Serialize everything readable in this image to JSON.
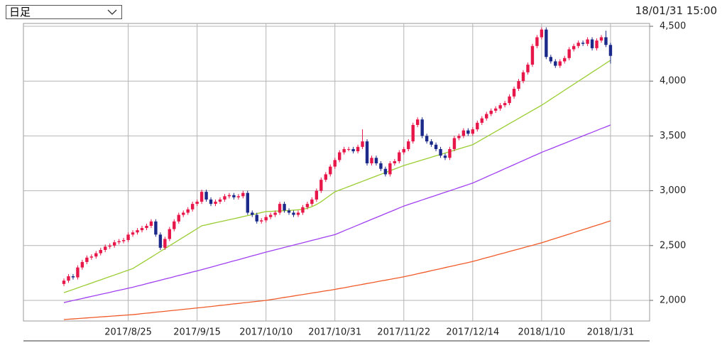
{
  "period_select": "日足",
  "timestamp": "18/01/31 15:00",
  "chart_data": {
    "type": "candlestick",
    "categories": [
      null,
      null,
      null,
      null,
      null,
      null,
      null,
      null,
      null,
      null,
      null,
      null,
      null,
      null,
      "2017/8/25",
      null,
      null,
      null,
      null,
      null,
      null,
      null,
      null,
      null,
      null,
      null,
      null,
      null,
      null,
      "2017/9/15",
      null,
      null,
      null,
      null,
      null,
      null,
      null,
      null,
      null,
      null,
      null,
      null,
      null,
      null,
      "2017/10/10",
      null,
      null,
      null,
      null,
      null,
      null,
      null,
      null,
      null,
      null,
      null,
      null,
      null,
      null,
      "2017/10/31",
      null,
      null,
      null,
      null,
      null,
      null,
      null,
      null,
      null,
      null,
      null,
      null,
      null,
      null,
      "2017/11/22",
      null,
      null,
      null,
      null,
      null,
      null,
      null,
      null,
      null,
      null,
      null,
      null,
      null,
      null,
      "2017/12/14",
      null,
      null,
      null,
      null,
      null,
      null,
      null,
      null,
      null,
      null,
      null,
      null,
      null,
      null,
      "2018/1/10",
      null,
      null,
      null,
      null,
      null,
      null,
      null,
      null,
      null,
      null,
      null,
      null,
      null,
      null,
      "2018/1/31"
    ],
    "open": [
      2150,
      2180,
      2220,
      2210,
      2300,
      2350,
      2390,
      2400,
      2430,
      2460,
      2490,
      2500,
      2530,
      2540,
      2550,
      2600,
      2620,
      2640,
      2660,
      2680,
      2720,
      2600,
      2480,
      2560,
      2650,
      2720,
      2780,
      2800,
      2830,
      2880,
      2900,
      2990,
      2920,
      2880,
      2900,
      2920,
      2950,
      2960,
      2940,
      2950,
      2980,
      2800,
      2780,
      2720,
      2730,
      2760,
      2780,
      2800,
      2880,
      2820,
      2800,
      2780,
      2800,
      2850,
      2880,
      2920,
      3000,
      3100,
      3150,
      3220,
      3280,
      3350,
      3380,
      3380,
      3360,
      3400,
      3450,
      3250,
      3300,
      3250,
      3200,
      3150,
      3250,
      3270,
      3350,
      3380,
      3450,
      3600,
      3650,
      3500,
      3450,
      3420,
      3380,
      3320,
      3300,
      3380,
      3480,
      3500,
      3550,
      3520,
      3560,
      3620,
      3660,
      3700,
      3730,
      3750,
      3780,
      3800,
      3860,
      3930,
      4000,
      4080,
      4150,
      4320,
      4400,
      4470,
      4220,
      4180,
      4140,
      4180,
      4210,
      4290,
      4320,
      4350,
      4340,
      4380,
      4300,
      4370,
      4400,
      4330
    ],
    "high": [
      2200,
      2240,
      2240,
      2320,
      2370,
      2410,
      2420,
      2450,
      2480,
      2510,
      2520,
      2550,
      2560,
      2570,
      2620,
      2640,
      2660,
      2680,
      2700,
      2740,
      2740,
      2620,
      2580,
      2670,
      2740,
      2800,
      2820,
      2850,
      2900,
      2920,
      3010,
      3010,
      2940,
      2920,
      2940,
      2970,
      2980,
      2980,
      2970,
      3000,
      3000,
      2820,
      2800,
      2750,
      2780,
      2800,
      2820,
      2900,
      2900,
      2840,
      2820,
      2820,
      2870,
      2900,
      2940,
      3020,
      3120,
      3170,
      3240,
      3300,
      3370,
      3400,
      3400,
      3400,
      3420,
      3560,
      3470,
      3320,
      3320,
      3270,
      3220,
      3270,
      3290,
      3370,
      3400,
      3470,
      3620,
      3670,
      3670,
      3520,
      3470,
      3440,
      3400,
      3340,
      3400,
      3500,
      3520,
      3570,
      3570,
      3580,
      3640,
      3680,
      3720,
      3750,
      3770,
      3800,
      3820,
      3880,
      3950,
      4020,
      4100,
      4170,
      4340,
      4420,
      4490,
      4490,
      4240,
      4200,
      4200,
      4230,
      4310,
      4340,
      4370,
      4370,
      4400,
      4400,
      4390,
      4420,
      4460,
      4350
    ],
    "low": [
      2130,
      2160,
      2190,
      2190,
      2280,
      2330,
      2370,
      2380,
      2410,
      2440,
      2470,
      2480,
      2510,
      2520,
      2530,
      2580,
      2600,
      2620,
      2640,
      2660,
      2580,
      2460,
      2460,
      2540,
      2630,
      2700,
      2760,
      2780,
      2810,
      2860,
      2880,
      2900,
      2860,
      2860,
      2880,
      2900,
      2930,
      2920,
      2920,
      2930,
      2780,
      2760,
      2700,
      2700,
      2710,
      2740,
      2760,
      2780,
      2800,
      2780,
      2760,
      2760,
      2780,
      2830,
      2860,
      2900,
      2980,
      3080,
      3130,
      3200,
      3260,
      3330,
      3360,
      3340,
      3340,
      3380,
      3230,
      3230,
      3230,
      3180,
      3130,
      3130,
      3230,
      3250,
      3330,
      3360,
      3430,
      3580,
      3480,
      3430,
      3400,
      3360,
      3300,
      3280,
      3280,
      3360,
      3460,
      3480,
      3500,
      3500,
      3540,
      3600,
      3640,
      3680,
      3710,
      3730,
      3760,
      3780,
      3840,
      3910,
      3980,
      4060,
      4130,
      4300,
      4380,
      4200,
      4160,
      4120,
      4120,
      4160,
      4190,
      4270,
      4300,
      4320,
      4320,
      4280,
      4280,
      4350,
      4310,
      4160
    ],
    "close": [
      2180,
      2220,
      2210,
      2300,
      2350,
      2390,
      2400,
      2430,
      2460,
      2490,
      2500,
      2530,
      2540,
      2550,
      2600,
      2620,
      2640,
      2660,
      2680,
      2720,
      2600,
      2480,
      2560,
      2650,
      2720,
      2780,
      2800,
      2830,
      2880,
      2900,
      2990,
      2920,
      2880,
      2900,
      2920,
      2950,
      2960,
      2940,
      2950,
      2980,
      2800,
      2780,
      2720,
      2730,
      2760,
      2780,
      2800,
      2880,
      2820,
      2800,
      2780,
      2800,
      2850,
      2880,
      2920,
      3000,
      3100,
      3150,
      3220,
      3280,
      3350,
      3380,
      3380,
      3360,
      3400,
      3450,
      3250,
      3300,
      3250,
      3200,
      3150,
      3250,
      3270,
      3350,
      3380,
      3450,
      3600,
      3650,
      3500,
      3450,
      3420,
      3380,
      3320,
      3300,
      3380,
      3480,
      3500,
      3550,
      3520,
      3560,
      3620,
      3660,
      3700,
      3730,
      3750,
      3780,
      3800,
      3860,
      3930,
      4000,
      4080,
      4150,
      4320,
      4400,
      4470,
      4220,
      4180,
      4140,
      4180,
      4210,
      4290,
      4320,
      4350,
      4340,
      4380,
      4300,
      4370,
      4400,
      4330,
      4230
    ],
    "up_color": "#e8174a",
    "down_color": "#1b2a8a",
    "series": [
      {
        "color": "#9acd32",
        "values": [
          2070,
          2085,
          2099,
          2114,
          2129,
          2143,
          2158,
          2173,
          2187,
          2202,
          2217,
          2231,
          2246,
          2261,
          2275,
          2290,
          2316,
          2342,
          2368,
          2394,
          2420,
          2446,
          2472,
          2498,
          2524,
          2550,
          2576,
          2602,
          2628,
          2654,
          2680,
          2689,
          2699,
          2708,
          2717,
          2726,
          2736,
          2745,
          2754,
          2764,
          2773,
          2782,
          2791,
          2801,
          2810,
          2812,
          2814,
          2816,
          2818,
          2820,
          2823,
          2826,
          2830,
          2840,
          2855,
          2875,
          2900,
          2930,
          2960,
          2990,
          3006,
          3022,
          3038,
          3054,
          3070,
          3086,
          3102,
          3118,
          3134,
          3150,
          3166,
          3182,
          3198,
          3214,
          3230,
          3243,
          3255,
          3268,
          3281,
          3293,
          3306,
          3319,
          3331,
          3344,
          3357,
          3369,
          3382,
          3395,
          3407,
          3420,
          3444,
          3468,
          3492,
          3516,
          3540,
          3564,
          3588,
          3612,
          3636,
          3660,
          3684,
          3708,
          3732,
          3756,
          3780,
          3807,
          3835,
          3862,
          3889,
          3917,
          3944,
          3971,
          3999,
          4026,
          4053,
          4081,
          4108,
          4135,
          4163,
          4190
        ]
      },
      {
        "color": "#a040f0",
        "values": [
          1980,
          1989,
          1999,
          2008,
          2017,
          2027,
          2036,
          2045,
          2055,
          2064,
          2073,
          2083,
          2092,
          2101,
          2111,
          2120,
          2131,
          2141,
          2152,
          2163,
          2173,
          2184,
          2195,
          2205,
          2216,
          2227,
          2237,
          2248,
          2259,
          2269,
          2280,
          2291,
          2303,
          2314,
          2326,
          2337,
          2349,
          2360,
          2371,
          2383,
          2394,
          2406,
          2417,
          2429,
          2440,
          2451,
          2461,
          2472,
          2483,
          2493,
          2504,
          2515,
          2525,
          2536,
          2547,
          2557,
          2568,
          2579,
          2589,
          2600,
          2617,
          2635,
          2652,
          2669,
          2687,
          2704,
          2721,
          2739,
          2756,
          2773,
          2791,
          2808,
          2825,
          2843,
          2860,
          2874,
          2888,
          2902,
          2916,
          2930,
          2944,
          2958,
          2972,
          2986,
          3000,
          3014,
          3028,
          3042,
          3056,
          3070,
          3089,
          3107,
          3126,
          3145,
          3163,
          3182,
          3201,
          3219,
          3238,
          3257,
          3275,
          3294,
          3313,
          3331,
          3350,
          3367,
          3383,
          3400,
          3417,
          3433,
          3450,
          3467,
          3483,
          3500,
          3517,
          3533,
          3550,
          3567,
          3583,
          3600
        ]
      },
      {
        "color": "#f05a28",
        "values": [
          1825,
          1828,
          1831,
          1834,
          1837,
          1840,
          1843,
          1846,
          1849,
          1852,
          1855,
          1858,
          1861,
          1864,
          1867,
          1870,
          1874,
          1879,
          1883,
          1887,
          1892,
          1896,
          1900,
          1905,
          1909,
          1913,
          1918,
          1922,
          1926,
          1931,
          1935,
          1940,
          1944,
          1949,
          1954,
          1958,
          1963,
          1968,
          1972,
          1977,
          1981,
          1986,
          1991,
          1995,
          2000,
          2007,
          2013,
          2020,
          2027,
          2033,
          2040,
          2047,
          2053,
          2060,
          2067,
          2073,
          2080,
          2087,
          2093,
          2100,
          2108,
          2115,
          2123,
          2131,
          2138,
          2146,
          2154,
          2161,
          2169,
          2177,
          2184,
          2192,
          2200,
          2207,
          2215,
          2224,
          2233,
          2243,
          2252,
          2261,
          2271,
          2280,
          2289,
          2299,
          2308,
          2317,
          2327,
          2336,
          2345,
          2355,
          2366,
          2378,
          2389,
          2400,
          2412,
          2423,
          2434,
          2446,
          2457,
          2468,
          2480,
          2491,
          2502,
          2514,
          2525,
          2538,
          2552,
          2565,
          2578,
          2592,
          2605,
          2618,
          2632,
          2645,
          2658,
          2672,
          2685,
          2698,
          2712,
          2725
        ]
      }
    ],
    "ylim": [
      1812,
      4526
    ],
    "yticks": [
      {
        "value": 2000,
        "label": "2,000"
      },
      {
        "value": 2500,
        "label": "2,500"
      },
      {
        "value": 3000,
        "label": "3,000"
      },
      {
        "value": 3500,
        "label": "3,500"
      },
      {
        "value": 4000,
        "label": "4,000"
      },
      {
        "value": 4500,
        "label": "4,500"
      }
    ],
    "grid": true
  }
}
